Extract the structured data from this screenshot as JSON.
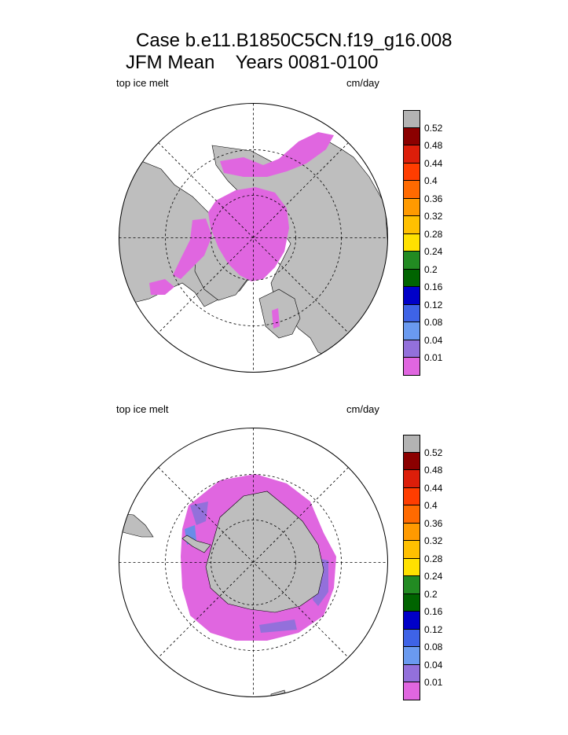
{
  "title": {
    "line1": "Case b.e11.B1850C5CN.f19_g16.008",
    "line2": "JFM Mean    Years 0081-0100"
  },
  "panels": [
    {
      "id": "north",
      "label": "top ice melt",
      "units": "cm/day"
    },
    {
      "id": "south",
      "label": "top ice melt",
      "units": "cm/day"
    }
  ],
  "colorbar": {
    "levels": [
      "0.52",
      "0.48",
      "0.44",
      "0.4",
      "0.36",
      "0.32",
      "0.28",
      "0.24",
      "0.2",
      "0.16",
      "0.12",
      "0.08",
      "0.04",
      "0.01"
    ],
    "colors": [
      "#b3b3b3",
      "#8b0000",
      "#dc1e0a",
      "#ff3d00",
      "#ff6a00",
      "#ff9a00",
      "#ffc000",
      "#ffe100",
      "#228b22",
      "#006400",
      "#0000c8",
      "#3e63e6",
      "#6a9af0",
      "#9370db",
      "#e066e0"
    ]
  },
  "colors": {
    "land": "#bebebe",
    "ice_melt_low": "#e066e0",
    "ice_melt_mid": "#9370db",
    "ice_melt_high": "#6a8ce8"
  }
}
